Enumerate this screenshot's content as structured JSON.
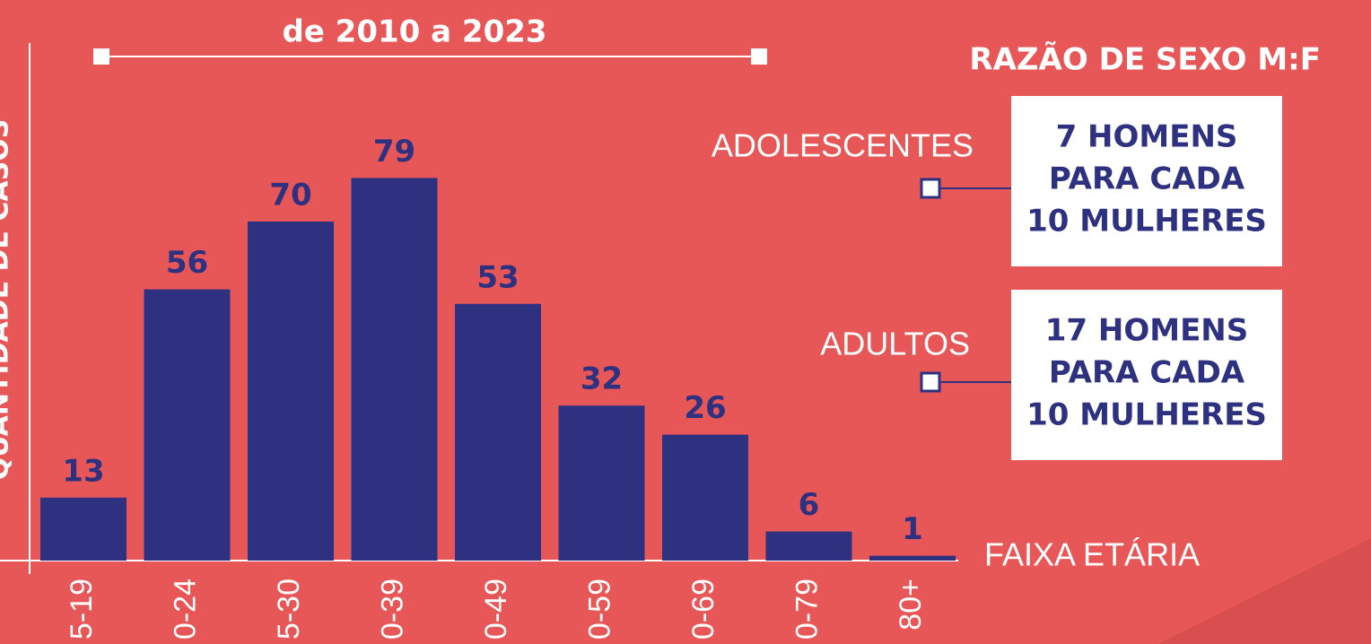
{
  "chart_data": {
    "type": "bar",
    "title": "de 2010 a 2023",
    "x_label": "FAIXA ETÁRIA",
    "y_label": "QUANTIDADE DE CASOS",
    "categories": [
      "5-19",
      "0-24",
      "5-30",
      "0-39",
      "0-49",
      "0-59",
      "0-69",
      "0-79",
      "80+"
    ],
    "values": [
      13,
      56,
      70,
      79,
      53,
      32,
      26,
      6,
      1
    ],
    "color": "#2e3080",
    "ylim": [
      0,
      100
    ],
    "ratio_title": "RAZÃO DE SEXO M:F",
    "ratios": [
      {
        "group": "ADOLESCENTES",
        "lines": [
          "7 HOMENS",
          "PARA CADA",
          "10 MULHERES"
        ]
      },
      {
        "group": "ADULTOS",
        "lines": [
          "17 HOMENS",
          "PARA CADA",
          "10 MULHERES"
        ]
      }
    ]
  }
}
